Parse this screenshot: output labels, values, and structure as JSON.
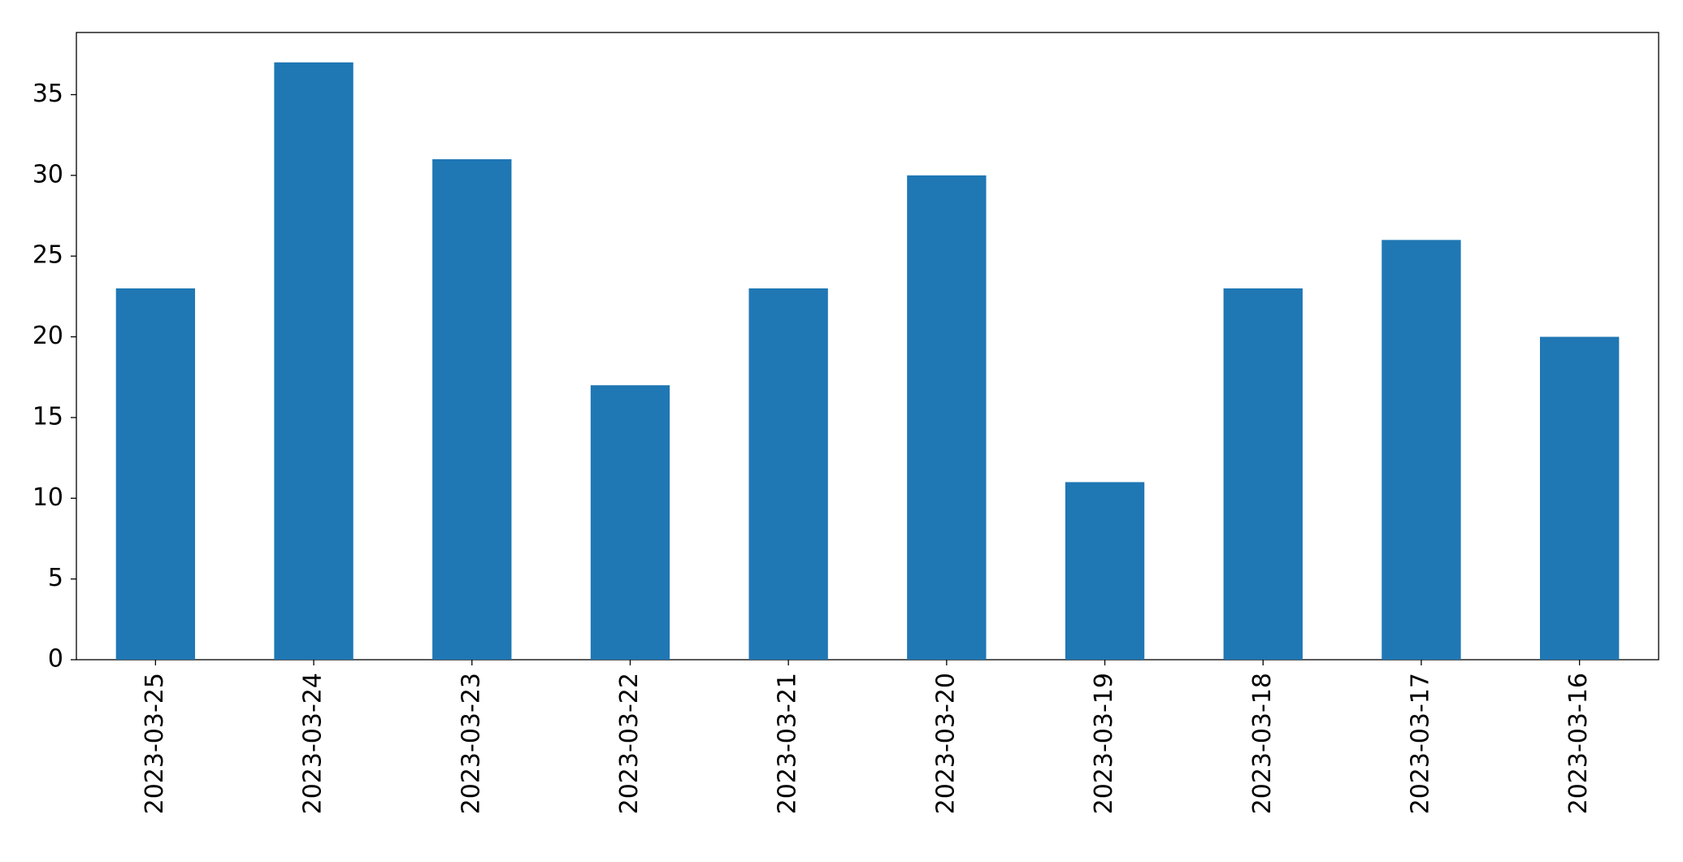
{
  "chart_data": {
    "type": "bar",
    "categories": [
      "2023-03-25",
      "2023-03-24",
      "2023-03-23",
      "2023-03-22",
      "2023-03-21",
      "2023-03-20",
      "2023-03-19",
      "2023-03-18",
      "2023-03-17",
      "2023-03-16"
    ],
    "values": [
      23,
      37,
      31,
      17,
      23,
      30,
      11,
      23,
      26,
      20
    ],
    "color": "#1f77b4",
    "ylim": [
      0,
      38.85
    ],
    "yticks": [
      0,
      5,
      10,
      15,
      20,
      25,
      30,
      35
    ],
    "grid": false
  }
}
